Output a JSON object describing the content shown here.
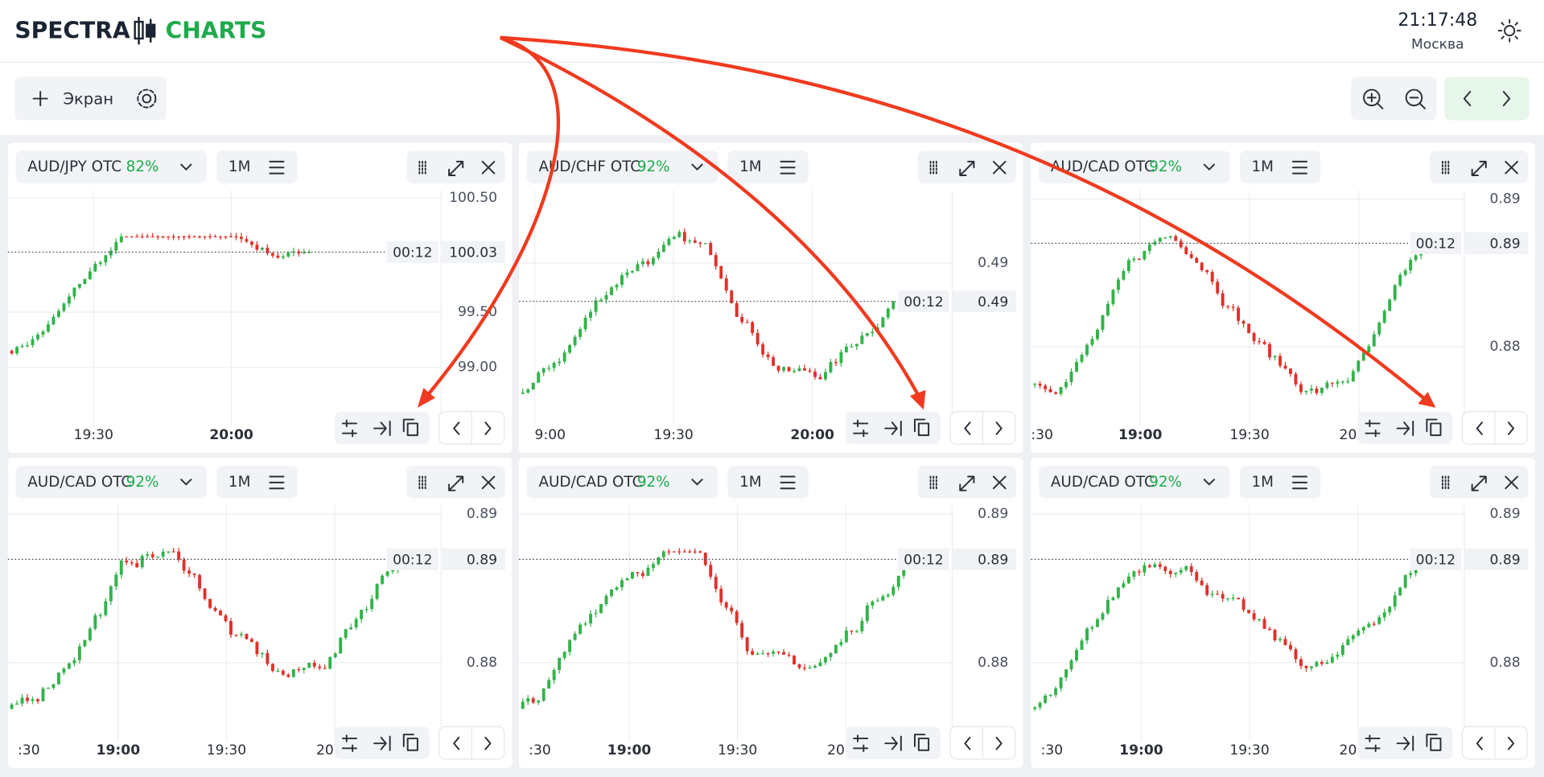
{
  "header": {
    "brand_left": "SPECTRA",
    "brand_right": "CHARTS",
    "clock": "21:17:48",
    "city": "Москва"
  },
  "toolbar": {
    "add_screen": "Экран"
  },
  "panels": [
    {
      "pair": "AUD/JPY OTC",
      "payout": "82%",
      "timeframe": "1M",
      "price_labels": [
        "100.50",
        "99.50",
        "99.00"
      ],
      "timer": "00:12",
      "current_price": "100.03",
      "time_labels": [
        "19:30",
        "20:00"
      ]
    },
    {
      "pair": "AUD/CHF OTC",
      "payout": "92%",
      "timeframe": "1M",
      "price_labels": [
        "0.49"
      ],
      "timer": "00:12",
      "current_price": "0.49",
      "time_labels": [
        "9:00",
        "19:30",
        "20:00"
      ]
    },
    {
      "pair": "AUD/CAD OTC",
      "payout": "92%",
      "timeframe": "1M",
      "price_labels": [
        "0.89",
        "0.88"
      ],
      "timer": "00:12",
      "current_price": "0.89",
      "time_labels": [
        ":30",
        "19:00",
        "19:30",
        "20"
      ]
    },
    {
      "pair": "AUD/CAD OTC",
      "payout": "92%",
      "timeframe": "1M",
      "price_labels": [
        "0.89",
        "0.88"
      ],
      "timer": "00:12",
      "current_price": "0.89",
      "time_labels": [
        ":30",
        "19:00",
        "19:30",
        "20"
      ]
    },
    {
      "pair": "AUD/CAD OTC",
      "payout": "92%",
      "timeframe": "1M",
      "price_labels": [
        "0.89",
        "0.88"
      ],
      "timer": "00:12",
      "current_price": "0.89",
      "time_labels": [
        ":30",
        "19:00",
        "19:30",
        "20"
      ]
    },
    {
      "pair": "AUD/CAD OTC",
      "payout": "92%",
      "timeframe": "1M",
      "price_labels": [
        "0.89",
        "0.88"
      ],
      "timer": "00:12",
      "current_price": "0.89",
      "time_labels": [
        ":30",
        "19:00",
        "19:30",
        "20"
      ]
    }
  ]
}
